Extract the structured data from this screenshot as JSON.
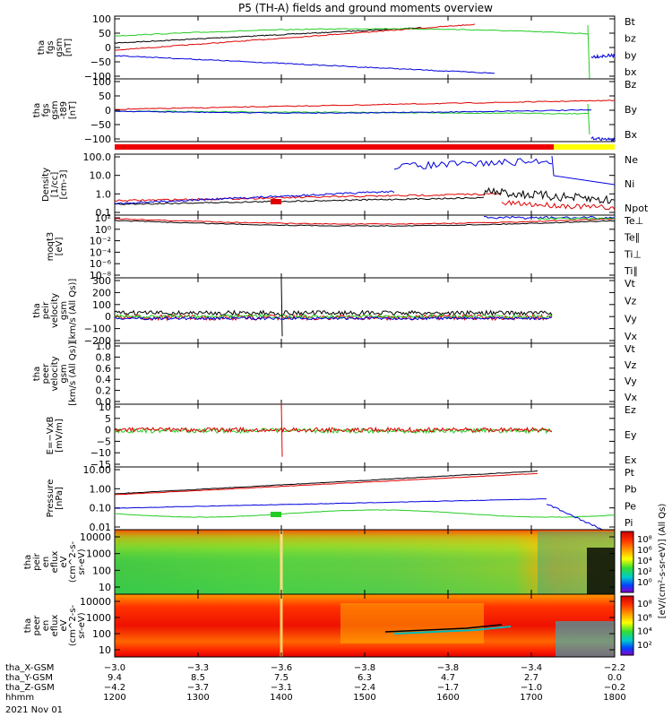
{
  "title": "P5 (TH-A) fields and ground moments overview",
  "colors": {
    "black": "#000000",
    "red": "#e00000",
    "green": "#22cc22",
    "blue": "#0000dd",
    "bar_red": "#ee0000",
    "bar_yellow": "#ffff00"
  },
  "chart_data": {
    "type": "line",
    "x_range_hhmm": [
      "1200",
      "1800"
    ],
    "x_tick_hhmm": [
      "1200",
      "1300",
      "1400",
      "1500",
      "1600",
      "1700",
      "1800"
    ],
    "panels": [
      {
        "id": "fgs",
        "ylabel": [
          "tha",
          "fgs",
          "gsm",
          "[nT]"
        ],
        "yticks": [
          "100",
          "50",
          "0",
          "−50",
          "−100"
        ],
        "legend": [
          {
            "text": "Bt",
            "color": "black"
          },
          {
            "text": "bz",
            "color": "red"
          },
          {
            "text": "by",
            "color": "green"
          },
          {
            "text": "bx",
            "color": "blue"
          }
        ],
        "ylim": [
          -100,
          100
        ]
      },
      {
        "id": "fgs_t89",
        "ylabel": [
          "tha",
          "fgs",
          "gsm",
          "-t89",
          "[nT]"
        ],
        "yticks": [
          "100",
          "50",
          "0",
          "−50",
          "−100"
        ],
        "legend": [
          {
            "text": "Bz",
            "color": "red"
          },
          {
            "text": "By",
            "color": "green"
          },
          {
            "text": "Bx",
            "color": "blue"
          }
        ],
        "ylim": [
          -130,
          120
        ]
      },
      {
        "id": "density",
        "ylabel": [
          "Density",
          "[1/cc]",
          "[cm-3]"
        ],
        "yticks": [
          "100.0",
          "10.0",
          "1.0",
          "0.1"
        ],
        "legend": [
          {
            "text": "Ne",
            "color": "red"
          },
          {
            "text": "Ni",
            "color": "black"
          },
          {
            "text": "Npot",
            "color": "blue"
          }
        ],
        "ylim": [
          0.06,
          200
        ],
        "log": true
      },
      {
        "id": "temperature",
        "ylabel": [
          "moqt3",
          "[eV]"
        ],
        "yticks": [
          "10²",
          "10⁰",
          "10⁻²",
          "10⁻⁴",
          "10⁻⁶",
          "10⁻⁸"
        ],
        "legend": [
          {
            "text": "Te⊥",
            "color": "red"
          },
          {
            "text": "Te∥",
            "color": "black"
          },
          {
            "text": "Ti⊥",
            "color": "red"
          },
          {
            "text": "Ti∥",
            "color": "green"
          }
        ],
        "log": true
      },
      {
        "id": "peir_velocity",
        "ylabel": [
          "tha",
          "peir",
          "velocity",
          "gsm",
          "[km/s (All Qs)]"
        ],
        "yticks": [
          "300",
          "200",
          "100",
          "0",
          "−100",
          "−200"
        ],
        "legend": [
          {
            "text": "Vt",
            "color": "black"
          },
          {
            "text": "Vz",
            "color": "red"
          },
          {
            "text": "Vy",
            "color": "green"
          },
          {
            "text": "Vx",
            "color": "blue"
          }
        ],
        "ylim": [
          -200,
          300
        ]
      },
      {
        "id": "peer_velocity",
        "ylabel": [
          "tha",
          "peer",
          "velocity",
          "gsm",
          "[km/s (All Qs)]"
        ],
        "yticks": [
          "1.0",
          "0.8",
          "0.6",
          "0.4",
          "0.2",
          "0.0"
        ],
        "legend": [
          {
            "text": "Vt",
            "color": "black"
          },
          {
            "text": "Vz",
            "color": "red"
          },
          {
            "text": "Vy",
            "color": "green"
          },
          {
            "text": "Vx",
            "color": "blue"
          }
        ],
        "ylim": [
          0,
          1
        ]
      },
      {
        "id": "efield",
        "ylabel": [
          "E=−VxB",
          "[mV/m]"
        ],
        "yticks": [
          "10",
          "5",
          "0",
          "−5",
          "−10",
          "−15"
        ],
        "legend": [
          {
            "text": "Ez",
            "color": "red"
          },
          {
            "text": "Ey",
            "color": "green"
          },
          {
            "text": "Ex",
            "color": "blue"
          }
        ],
        "ylim": [
          -15,
          10
        ]
      },
      {
        "id": "pressure",
        "ylabel": [
          "Pressure",
          "[nPa]"
        ],
        "yticks": [
          "10.00",
          "1.00",
          "0.10",
          "0.01"
        ],
        "legend": [
          {
            "text": "Pt",
            "color": "black"
          },
          {
            "text": "Pb",
            "color": "red"
          },
          {
            "text": "Pe",
            "color": "green"
          },
          {
            "text": "Pi",
            "color": "blue"
          }
        ],
        "log": true
      },
      {
        "id": "peir_spec",
        "ylabel": [
          "tha",
          "peir",
          "en",
          "eflux",
          "eV",
          "(cm^2-s-",
          "sr-eV)"
        ],
        "yticks": [
          "10000",
          "1000",
          "100",
          "10"
        ],
        "colorbar_ticks": [
          "10⁸",
          "10⁶",
          "10⁴",
          "10²",
          "10⁰"
        ]
      },
      {
        "id": "peer_spec",
        "ylabel": [
          "tha",
          "peer",
          "en",
          "eflux",
          "eV",
          "(cm^2-s-",
          "sr-eV)"
        ],
        "yticks": [
          "10000",
          "1000",
          "100",
          "10"
        ],
        "colorbar_ticks": [
          "10⁸",
          "10⁶",
          "10⁴",
          "10²"
        ]
      }
    ],
    "colorbar_label": "[eV/(cm²-s-sr-eV)] (All Qs)"
  },
  "footer": {
    "rows": [
      {
        "label": "tha_X-GSM",
        "values": [
          "−3.0",
          "−3.3",
          "−3.6",
          "−3.8",
          "−3.8",
          "−3.4",
          "−2.2"
        ]
      },
      {
        "label": "tha_Y-GSM",
        "values": [
          "9.4",
          "8.5",
          "7.5",
          "6.3",
          "4.7",
          "2.7",
          "0.0"
        ]
      },
      {
        "label": "tha_Z-GSM",
        "values": [
          "−4.2",
          "−3.7",
          "−3.1",
          "−2.4",
          "−1.7",
          "−1.0",
          "−0.2"
        ]
      },
      {
        "label": "hhmm",
        "values": [
          "1200",
          "1300",
          "1400",
          "1500",
          "1600",
          "1700",
          "1800"
        ]
      }
    ],
    "date": "2021 Nov 01"
  }
}
